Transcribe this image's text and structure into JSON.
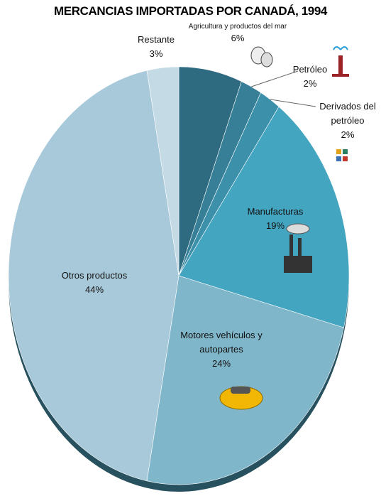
{
  "chart_data": {
    "type": "pie",
    "title": "MERCANCIAS IMPORTADAS POR CANADÁ, 1994",
    "categories": [
      "Agricultura y productos del mar",
      "Petróleo",
      "Derivados del petróleo",
      "Manufacturas",
      "Motores vehículos y autopartes",
      "Otros productos",
      "Restante"
    ],
    "values": [
      6,
      2,
      2,
      19,
      24,
      44,
      3
    ],
    "value_labels": [
      "6%",
      "2%",
      "2%",
      "19%",
      "24%",
      "44%",
      "3%"
    ],
    "colors": [
      "#2f6b80",
      "#367f96",
      "#3c90aa",
      "#44a5c0",
      "#80b6ca",
      "#a8c9da",
      "#c4dae5"
    ]
  }
}
